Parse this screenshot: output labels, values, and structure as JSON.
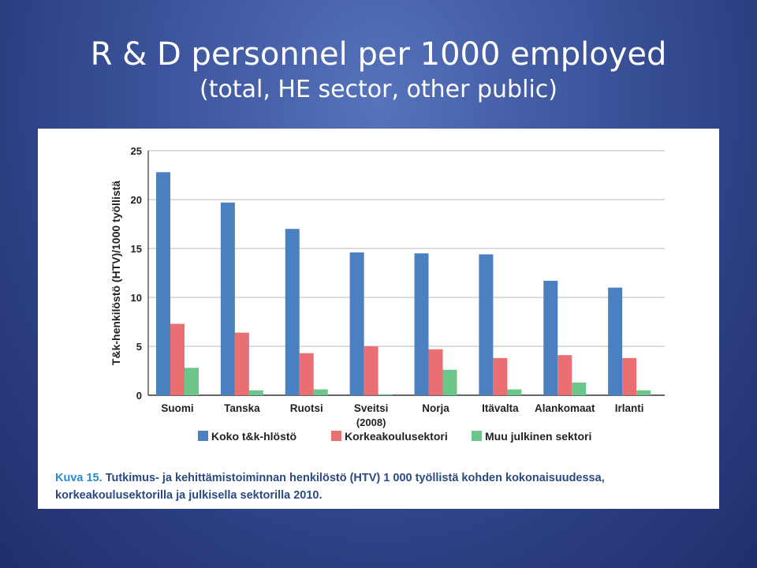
{
  "slide": {
    "title": "R & D personnel per 1000 employed",
    "subtitle": "(total, HE sector, other public)"
  },
  "caption": {
    "label": "Kuva 15.",
    "text": "Tutkimus- ja kehittämistoiminnan henkilöstö (HTV) 1 000 työllistä kohden kokonaisuudessa, korkeakoulusektorilla ja julkisella sektorilla 2010."
  },
  "chart_data": {
    "type": "bar",
    "title": "",
    "xlabel": "",
    "ylabel": "T&k-henkilöstö (HTV)/1000 työllistä",
    "ylim": [
      0,
      25
    ],
    "yticks": [
      0,
      5,
      10,
      15,
      20,
      25
    ],
    "grid": true,
    "legend": "bottom",
    "categories": [
      "Suomi",
      "Tanska",
      "Ruotsi",
      "Sveitsi",
      "Norja",
      "Itävalta",
      "Alankomaat",
      "Irlanti"
    ],
    "category_notes": [
      "",
      "",
      "",
      "(2008)",
      "",
      "",
      "",
      ""
    ],
    "series": [
      {
        "name": "Koko t&k-hlöstö",
        "color": "#4a7fc0",
        "values": [
          22.8,
          19.7,
          17.0,
          14.6,
          14.5,
          14.4,
          11.7,
          11.0
        ]
      },
      {
        "name": "Korkeakoulusektori",
        "color": "#ea6f72",
        "values": [
          7.3,
          6.4,
          4.3,
          5.0,
          4.7,
          3.8,
          4.1,
          3.8
        ]
      },
      {
        "name": "Muu julkinen sektori",
        "color": "#6cc58a",
        "values": [
          2.8,
          0.5,
          0.6,
          0.1,
          2.6,
          0.6,
          1.3,
          0.5
        ]
      }
    ]
  }
}
